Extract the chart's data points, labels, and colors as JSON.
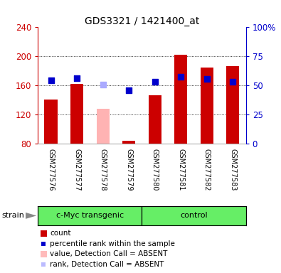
{
  "title": "GDS3321 / 1421400_at",
  "samples": [
    "GSM277576",
    "GSM277577",
    "GSM277578",
    "GSM277579",
    "GSM277580",
    "GSM277581",
    "GSM277582",
    "GSM277583"
  ],
  "bar_values": [
    140,
    162,
    128,
    84,
    146,
    202,
    185,
    186
  ],
  "bar_colors": [
    "#cc0000",
    "#cc0000",
    "#ffb3b3",
    "#cc0000",
    "#cc0000",
    "#cc0000",
    "#cc0000",
    "#cc0000"
  ],
  "dot_values": [
    167,
    170,
    161,
    153,
    165,
    172,
    169,
    165
  ],
  "dot_colors": [
    "#0000cc",
    "#0000cc",
    "#aaaaff",
    "#0000cc",
    "#0000cc",
    "#0000cc",
    "#0000cc",
    "#0000cc"
  ],
  "ylim_left": [
    80,
    240
  ],
  "ylim_right": [
    0,
    100
  ],
  "yticks_left": [
    80,
    120,
    160,
    200,
    240
  ],
  "yticks_right": [
    0,
    25,
    50,
    75,
    100
  ],
  "yticklabels_right": [
    "0",
    "25",
    "50",
    "75",
    "100%"
  ],
  "groups": [
    {
      "label": "c-Myc transgenic",
      "indices": [
        0,
        1,
        2,
        3
      ]
    },
    {
      "label": "control",
      "indices": [
        4,
        5,
        6,
        7
      ]
    }
  ],
  "group_green": "#66ee66",
  "legend_items": [
    {
      "label": "count",
      "color": "#cc0000",
      "shape": "square_tall"
    },
    {
      "label": "percentile rank within the sample",
      "color": "#0000cc",
      "shape": "square_small"
    },
    {
      "label": "value, Detection Call = ABSENT",
      "color": "#ffbbbb",
      "shape": "square_tall"
    },
    {
      "label": "rank, Detection Call = ABSENT",
      "color": "#bbbbff",
      "shape": "square_small"
    }
  ],
  "bar_width": 0.5,
  "dot_size": 28,
  "axis_color_left": "#cc0000",
  "axis_color_right": "#0000cc",
  "background_color": "#ffffff",
  "tick_label_area_color": "#cccccc",
  "gridline_color": "#000000",
  "gridline_lw": 0.6,
  "gridline_style": "dotted"
}
